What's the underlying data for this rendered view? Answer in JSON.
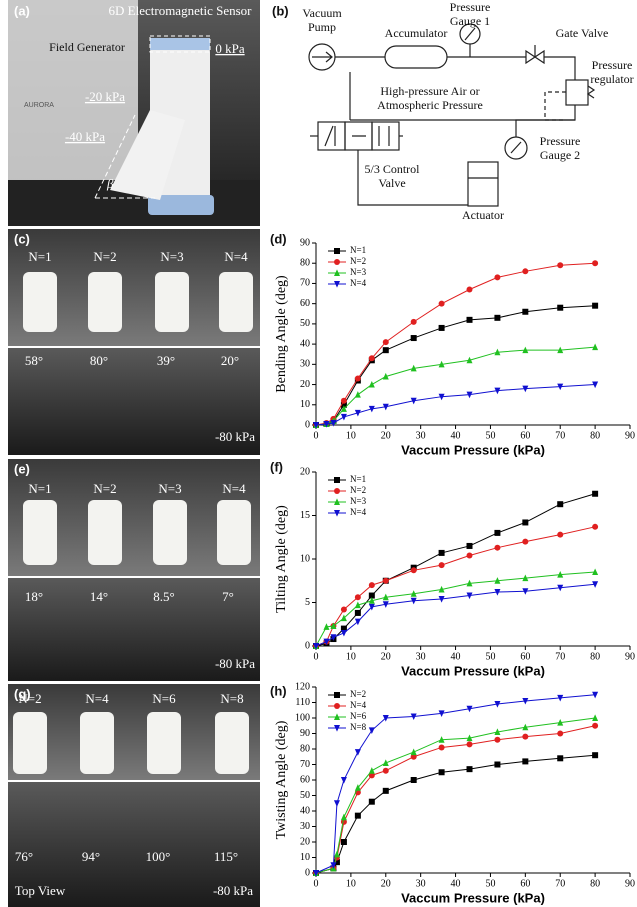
{
  "panels": {
    "a": {
      "label": "(a)",
      "sensor": "6D Electromagnetic Sensor",
      "p0": "0 kPa",
      "generator": "Field Generator",
      "p20": "-20 kPa",
      "p40": "-40 kPa",
      "angle": "β",
      "brand": "AURORA"
    },
    "b": {
      "label": "(b)",
      "pump": [
        "Vacuum",
        "Pump"
      ],
      "accumulator": [
        "Accumulator"
      ],
      "gauge1": [
        "Pressure",
        "Gauge 1"
      ],
      "gate": [
        "Gate Valve"
      ],
      "regulator": [
        "Pressure",
        "regulator"
      ],
      "air": [
        "High-pressure Air or",
        "Atmospheric Pressure"
      ],
      "gauge2": [
        "Pressure",
        "Gauge 2"
      ],
      "valve": [
        "5/3 Control",
        "Valve"
      ],
      "actuator": [
        "Actuator"
      ]
    },
    "c": {
      "label": "(c)",
      "n": [
        "N=1",
        "N=2",
        "N=3",
        "N=4"
      ],
      "angles": [
        "58°",
        "80°",
        "39°",
        "20°"
      ],
      "pressure": "-80 kPa"
    },
    "e": {
      "label": "(e)",
      "n": [
        "N=1",
        "N=2",
        "N=3",
        "N=4"
      ],
      "angles": [
        "18°",
        "14°",
        "8.5°",
        "7°"
      ],
      "pressure": "-80 kPa"
    },
    "g": {
      "label": "(g)",
      "n": [
        "N=2",
        "N=4",
        "N=6",
        "N=8"
      ],
      "angles": [
        "76°",
        "94°",
        "100°",
        "115°"
      ],
      "pressure": "-80 kPa",
      "view": "Top View"
    }
  },
  "chart_data": [
    {
      "type": "line",
      "label": "(d)",
      "x_label": "Vaccum Pressure (kPa)",
      "y_label": "Bending Angle (deg)",
      "x": [
        0,
        3,
        5,
        8,
        12,
        16,
        20,
        28,
        36,
        44,
        52,
        60,
        70,
        80
      ],
      "xlim": [
        0,
        90
      ],
      "xticks": [
        0,
        10,
        20,
        30,
        40,
        50,
        60,
        70,
        80,
        90
      ],
      "ylim": [
        0,
        90
      ],
      "yticks": [
        0,
        10,
        20,
        30,
        40,
        50,
        60,
        70,
        80,
        90
      ],
      "legend": "upper-left",
      "series": [
        {
          "name": "N=1",
          "color": "#000000",
          "marker": "square",
          "values": [
            0,
            0.5,
            2,
            10,
            22,
            32,
            37,
            43,
            48,
            52,
            53,
            56,
            58,
            59
          ]
        },
        {
          "name": "N=2",
          "color": "#e02020",
          "marker": "circle",
          "values": [
            0,
            1,
            3,
            12,
            23,
            33,
            41,
            51,
            60,
            67,
            73,
            76,
            79,
            80
          ]
        },
        {
          "name": "N=3",
          "color": "#20c020",
          "marker": "triangle-up",
          "values": [
            0,
            0.5,
            2,
            8,
            15,
            20,
            24,
            28,
            30,
            32,
            36,
            37,
            37,
            38.5
          ]
        },
        {
          "name": "N=4",
          "color": "#1010d0",
          "marker": "triangle-down",
          "values": [
            0,
            0.5,
            1,
            4,
            6,
            8,
            9,
            12,
            14,
            15,
            17,
            18,
            19,
            20
          ]
        }
      ]
    },
    {
      "type": "line",
      "label": "(f)",
      "x_label": "Vaccum Pressure (kPa)",
      "y_label": "Tilting Angle (deg)",
      "x": [
        0,
        3,
        5,
        8,
        12,
        16,
        20,
        28,
        36,
        44,
        52,
        60,
        70,
        80
      ],
      "xlim": [
        0,
        90
      ],
      "xticks": [
        0,
        10,
        20,
        30,
        40,
        50,
        60,
        70,
        80,
        90
      ],
      "ylim": [
        0,
        20
      ],
      "yticks": [
        0,
        5,
        10,
        15,
        20
      ],
      "legend": "upper-left",
      "series": [
        {
          "name": "N=1",
          "color": "#000000",
          "marker": "square",
          "values": [
            0,
            0.3,
            0.8,
            2,
            3.8,
            5.8,
            7.5,
            9,
            10.7,
            11.5,
            13,
            14.2,
            16.3,
            17.5
          ]
        },
        {
          "name": "N=2",
          "color": "#e02020",
          "marker": "circle",
          "values": [
            0,
            0.5,
            2.3,
            4.2,
            5.6,
            7,
            7.5,
            8.7,
            9.3,
            10.4,
            11.3,
            12,
            12.8,
            13.7
          ]
        },
        {
          "name": "N=3",
          "color": "#20c020",
          "marker": "triangle-up",
          "values": [
            0,
            2.2,
            2.3,
            3.2,
            4.7,
            5.2,
            5.6,
            6,
            6.5,
            7.2,
            7.5,
            7.8,
            8.2,
            8.5
          ]
        },
        {
          "name": "N=4",
          "color": "#1010d0",
          "marker": "triangle-down",
          "values": [
            0,
            0.5,
            1,
            1.5,
            2.8,
            4.5,
            4.8,
            5.2,
            5.4,
            5.8,
            6.2,
            6.3,
            6.7,
            7.1
          ]
        }
      ]
    },
    {
      "type": "line",
      "label": "(h)",
      "x_label": "Vaccum Pressure (kPa)",
      "y_label": "Twisting Angle (deg)",
      "x": [
        0,
        5,
        6,
        8,
        12,
        16,
        20,
        28,
        36,
        44,
        52,
        60,
        70,
        80
      ],
      "xlim": [
        0,
        90
      ],
      "xticks": [
        0,
        10,
        20,
        30,
        40,
        50,
        60,
        70,
        80,
        90
      ],
      "ylim": [
        0,
        120
      ],
      "yticks": [
        0,
        10,
        20,
        30,
        40,
        50,
        60,
        70,
        80,
        90,
        100,
        110,
        120
      ],
      "legend": "upper-left",
      "series": [
        {
          "name": "N=2",
          "color": "#000000",
          "marker": "square",
          "values": [
            0,
            3,
            7,
            20,
            37,
            46,
            53,
            60,
            65,
            67,
            70,
            72,
            74,
            76
          ]
        },
        {
          "name": "N=4",
          "color": "#e02020",
          "marker": "circle",
          "values": [
            0,
            3,
            10,
            33,
            52,
            63,
            66,
            75,
            81,
            83,
            86,
            88,
            90,
            95
          ]
        },
        {
          "name": "N=6",
          "color": "#20c020",
          "marker": "triangle-up",
          "values": [
            0,
            3,
            12,
            36,
            55,
            66,
            71,
            78,
            86,
            87,
            91,
            94,
            97,
            100
          ]
        },
        {
          "name": "N=8",
          "color": "#1010d0",
          "marker": "triangle-down",
          "values": [
            0,
            5,
            45,
            60,
            78,
            92,
            100,
            101,
            103,
            106,
            109,
            111,
            113,
            115
          ]
        }
      ]
    }
  ]
}
